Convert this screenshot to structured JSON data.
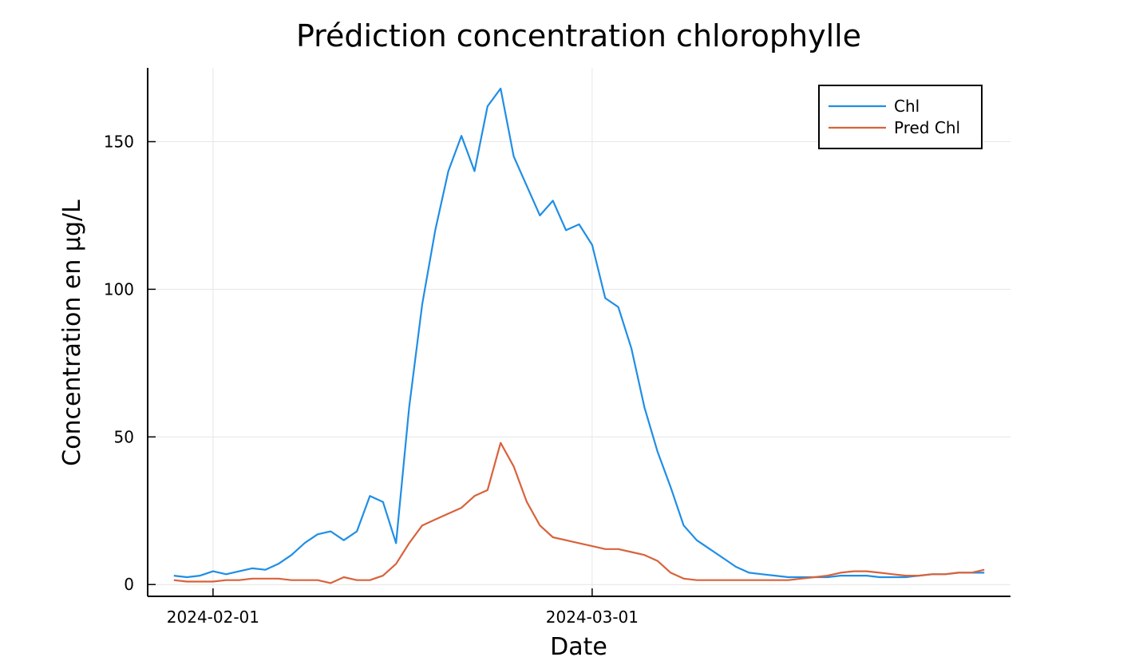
{
  "chart_data": {
    "type": "line",
    "title": "Prédiction concentration chlorophylle",
    "xlabel": "Date",
    "ylabel": "Concentration en µg/L",
    "x_ticks": [
      "2024-02-01",
      "2024-03-01"
    ],
    "y_ticks": [
      0,
      50,
      100,
      150
    ],
    "x_range": [
      "2024-01-27",
      "2024-04-02"
    ],
    "ylim": [
      -4,
      175
    ],
    "grid": true,
    "legend_position": "top-right",
    "x": [
      "2024-01-29",
      "2024-01-30",
      "2024-01-31",
      "2024-02-01",
      "2024-02-02",
      "2024-02-03",
      "2024-02-04",
      "2024-02-05",
      "2024-02-06",
      "2024-02-07",
      "2024-02-08",
      "2024-02-09",
      "2024-02-10",
      "2024-02-11",
      "2024-02-12",
      "2024-02-13",
      "2024-02-14",
      "2024-02-15",
      "2024-02-16",
      "2024-02-17",
      "2024-02-18",
      "2024-02-19",
      "2024-02-20",
      "2024-02-21",
      "2024-02-22",
      "2024-02-23",
      "2024-02-24",
      "2024-02-25",
      "2024-02-26",
      "2024-02-27",
      "2024-02-28",
      "2024-02-29",
      "2024-03-01",
      "2024-03-02",
      "2024-03-03",
      "2024-03-04",
      "2024-03-05",
      "2024-03-06",
      "2024-03-07",
      "2024-03-08",
      "2024-03-09",
      "2024-03-10",
      "2024-03-11",
      "2024-03-12",
      "2024-03-13",
      "2024-03-14",
      "2024-03-15",
      "2024-03-16",
      "2024-03-17",
      "2024-03-18",
      "2024-03-19",
      "2024-03-20",
      "2024-03-21",
      "2024-03-22",
      "2024-03-23",
      "2024-03-24",
      "2024-03-25",
      "2024-03-26",
      "2024-03-27",
      "2024-03-28",
      "2024-03-29",
      "2024-03-30",
      "2024-03-31"
    ],
    "series": [
      {
        "name": "Chl",
        "color": "#1f8ee6",
        "values": [
          3,
          2.5,
          3,
          4.5,
          3.5,
          4.5,
          5.5,
          5,
          7,
          10,
          14,
          17,
          18,
          15,
          18,
          30,
          28,
          14,
          60,
          95,
          120,
          140,
          152,
          140,
          162,
          168,
          145,
          135,
          125,
          130,
          120,
          122,
          115,
          97,
          94,
          80,
          60,
          45,
          33,
          20,
          15,
          12,
          9,
          6,
          4,
          3.5,
          3,
          2.5,
          2.5,
          2.5,
          2.5,
          3,
          3,
          3,
          2.5,
          2.5,
          2.5,
          3,
          3.5,
          3.5,
          4,
          4,
          4
        ]
      },
      {
        "name": "Pred Chl",
        "color": "#d9623b",
        "values": [
          1.5,
          1,
          1,
          1,
          1.5,
          1.5,
          2,
          2,
          2,
          1.5,
          1.5,
          1.5,
          0.5,
          2.5,
          1.5,
          1.5,
          3,
          7,
          14,
          20,
          22,
          24,
          26,
          30,
          32,
          48,
          40,
          28,
          20,
          16,
          15,
          14,
          13,
          12,
          12,
          11,
          10,
          8,
          4,
          2,
          1.5,
          1.5,
          1.5,
          1.5,
          1.5,
          1.5,
          1.5,
          1.5,
          2,
          2.5,
          3,
          4,
          4.5,
          4.5,
          4,
          3.5,
          3,
          3,
          3.5,
          3.5,
          4,
          4,
          5
        ]
      }
    ]
  }
}
